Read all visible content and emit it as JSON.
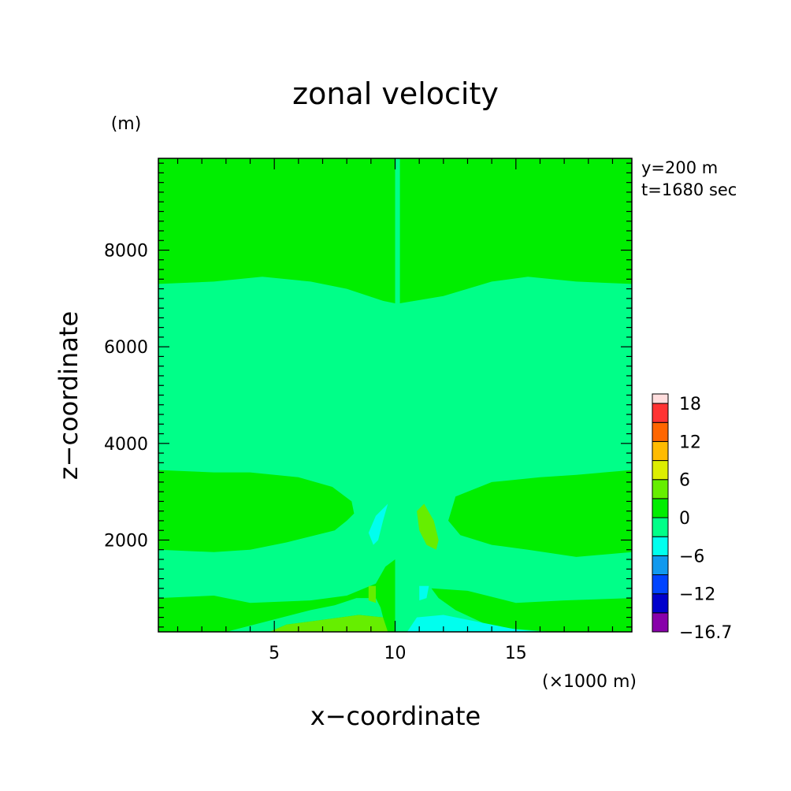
{
  "chart_data": {
    "type": "heatmap",
    "title": "zonal velocity",
    "xlabel": "x−coordinate",
    "ylabel": "z−coordinate",
    "y_unit": "(m)",
    "x_unit": "(×1000 m)",
    "annotation_lines": [
      "y=200 m",
      "t=1680 sec"
    ],
    "xlim": [
      0.2,
      19.8
    ],
    "ylim": [
      100,
      9900
    ],
    "x_ticks": [
      {
        "value": 5,
        "label": "5"
      },
      {
        "value": 10,
        "label": "10"
      },
      {
        "value": 15,
        "label": "15"
      }
    ],
    "y_ticks": [
      {
        "value": 2000,
        "label": "2000"
      },
      {
        "value": 4000,
        "label": "4000"
      },
      {
        "value": 6000,
        "label": "6000"
      },
      {
        "value": 8000,
        "label": "8000"
      }
    ],
    "colorbar": {
      "levels": [
        -16.7,
        -15,
        -12,
        -9,
        -6,
        -3,
        0,
        3,
        6,
        9,
        12,
        15,
        18
      ],
      "colors": [
        "#8800aa",
        "#0000cc",
        "#0044ff",
        "#1199ee",
        "#00ffee",
        "#00ff88",
        "#00ee00",
        "#66ee00",
        "#ddee00",
        "#ffbb00",
        "#ff6600",
        "#ff3333"
      ],
      "tick_labels": [
        {
          "value": -16.7,
          "label": "−16.7"
        },
        {
          "value": -12,
          "label": "−12"
        },
        {
          "value": -6,
          "label": "−6"
        },
        {
          "value": 0,
          "label": "0"
        },
        {
          "value": 6,
          "label": "6"
        },
        {
          "value": 12,
          "label": "12"
        },
        {
          "value": 18,
          "label": "18"
        }
      ]
    },
    "field": {
      "background": {
        "x": [
          0.2,
          19.8
        ],
        "z": [
          100,
          9900
        ],
        "level": "-3 to 0"
      },
      "regions": [
        {
          "level": "0 to 3",
          "points": [
            [
              0.2,
              9900
            ],
            [
              10,
              9900
            ],
            [
              10,
              6900
            ],
            [
              9.5,
              6950
            ],
            [
              8,
              7200
            ],
            [
              6.5,
              7350
            ],
            [
              4.5,
              7450
            ],
            [
              2.5,
              7350
            ],
            [
              0.2,
              7300
            ]
          ]
        },
        {
          "level": "0 to 3",
          "points": [
            [
              10.2,
              6900
            ],
            [
              12,
              7050
            ],
            [
              14,
              7350
            ],
            [
              15.5,
              7450
            ],
            [
              17.5,
              7350
            ],
            [
              19.8,
              7300
            ],
            [
              19.8,
              100
            ],
            [
              16.5,
              100
            ],
            [
              14,
              200
            ],
            [
              12.5,
              550
            ],
            [
              11.8,
              800
            ],
            [
              11.5,
              1000
            ],
            [
              13,
              950
            ],
            [
              15,
              700
            ],
            [
              17,
              750
            ],
            [
              19.8,
              800
            ],
            [
              19.8,
              1750
            ],
            [
              17.5,
              1650
            ],
            [
              15.5,
              1800
            ],
            [
              14,
              1900
            ],
            [
              12.7,
              2100
            ],
            [
              12.2,
              2400
            ],
            [
              12.5,
              2900
            ],
            [
              14,
              3200
            ],
            [
              16,
              3300
            ],
            [
              17.5,
              3350
            ],
            [
              19.8,
              3450
            ],
            [
              19.8,
              9900
            ],
            [
              10.2,
              9900
            ]
          ]
        },
        {
          "level": "0 to 3",
          "points": [
            [
              0.2,
              3450
            ],
            [
              2.5,
              3400
            ],
            [
              4,
              3400
            ],
            [
              6,
              3300
            ],
            [
              7.4,
              3100
            ],
            [
              8.2,
              2800
            ],
            [
              8.3,
              2550
            ],
            [
              8,
              2400
            ],
            [
              7.5,
              2200
            ],
            [
              5.5,
              1950
            ],
            [
              4,
              1800
            ],
            [
              2.5,
              1750
            ],
            [
              0.2,
              1800
            ]
          ]
        },
        {
          "level": "0 to 3",
          "points": [
            [
              0.2,
              800
            ],
            [
              2.5,
              850
            ],
            [
              3,
              800
            ],
            [
              4,
              700
            ],
            [
              6.5,
              750
            ],
            [
              8,
              850
            ],
            [
              9.2,
              1100
            ],
            [
              9.6,
              1450
            ],
            [
              10,
              1600
            ],
            [
              10,
              100
            ],
            [
              0.2,
              100
            ]
          ]
        },
        {
          "level": "-3 to 0",
          "points": [
            [
              6.5,
              550
            ],
            [
              7.5,
              650
            ],
            [
              8.4,
              800
            ],
            [
              9.2,
              800
            ],
            [
              9.4,
              600
            ],
            [
              9.5,
              400
            ],
            [
              8.5,
              450
            ],
            [
              7,
              350
            ],
            [
              5.5,
              250
            ],
            [
              4.8,
              100
            ],
            [
              3,
              100
            ]
          ]
        },
        {
          "level": "3 to 6",
          "points": [
            [
              4.8,
              100
            ],
            [
              5.5,
              250
            ],
            [
              7,
              350
            ],
            [
              8.5,
              450
            ],
            [
              9.5,
              400
            ],
            [
              9.7,
              100
            ]
          ]
        },
        {
          "level": "3 to 6",
          "points": [
            [
              8.9,
              1050
            ],
            [
              9.2,
              1050
            ],
            [
              9.2,
              700
            ],
            [
              8.9,
              750
            ]
          ]
        },
        {
          "level": "3 to 6",
          "points": [
            [
              11.2,
              2750
            ],
            [
              11.6,
              2400
            ],
            [
              11.8,
              2000
            ],
            [
              11.7,
              1800
            ],
            [
              11.3,
              1900
            ],
            [
              11,
              2200
            ],
            [
              10.9,
              2600
            ]
          ]
        },
        {
          "level": "-6 to -3",
          "points": [
            [
              9.7,
              2750
            ],
            [
              9.5,
              2400
            ],
            [
              9.3,
              2000
            ],
            [
              9.1,
              1900
            ],
            [
              8.9,
              2150
            ],
            [
              9.2,
              2500
            ]
          ]
        },
        {
          "level": "-6 to -3",
          "points": [
            [
              11,
              1050
            ],
            [
              11.4,
              1050
            ],
            [
              11.3,
              800
            ],
            [
              11,
              750
            ]
          ]
        },
        {
          "level": "-6 to -3",
          "points": [
            [
              10.5,
              100
            ],
            [
              10.9,
              400
            ],
            [
              12,
              450
            ],
            [
              13.5,
              300
            ],
            [
              15,
              150
            ],
            [
              16,
              100
            ]
          ]
        }
      ]
    }
  }
}
